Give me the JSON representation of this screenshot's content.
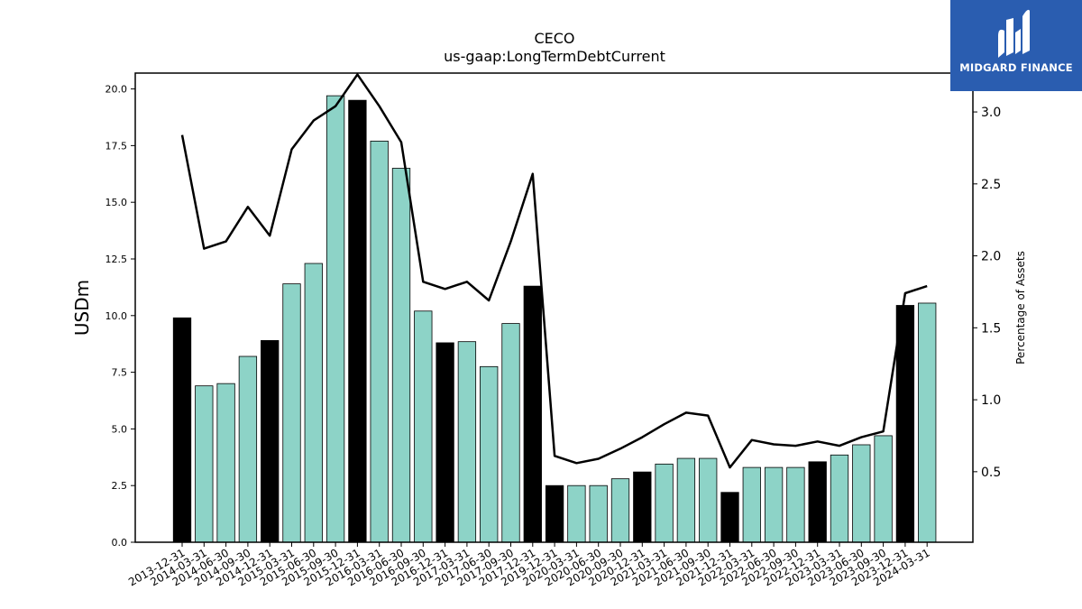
{
  "chart_data": {
    "type": "bar",
    "title": "CECO",
    "subtitle": "us-gaap:LongTermDebtCurrent",
    "ylabel": "USDm",
    "y2label": "Percentage of Assets",
    "ylim": [
      0,
      20.7
    ],
    "y2lim": [
      0.01,
      3.27
    ],
    "yticks": [
      "0.0",
      "2.5",
      "5.0",
      "7.5",
      "10.0",
      "12.5",
      "15.0",
      "17.5",
      "20.0"
    ],
    "y2ticks": [
      "0.5",
      "1.0",
      "1.5",
      "2.0",
      "2.5",
      "3.0"
    ],
    "categories": [
      "2013-12-31",
      "2014-03-31",
      "2014-06-30",
      "2014-09-30",
      "2014-12-31",
      "2015-03-31",
      "2015-06-30",
      "2015-09-30",
      "2015-12-31",
      "2016-03-31",
      "2016-06-30",
      "2016-09-30",
      "2016-12-31",
      "2017-03-31",
      "2017-06-30",
      "2017-09-30",
      "2017-12-31",
      "2019-12-31",
      "2020-03-31",
      "2020-06-30",
      "2020-09-30",
      "2020-12-31",
      "2021-03-31",
      "2021-06-30",
      "2021-09-30",
      "2021-12-31",
      "2022-03-31",
      "2022-06-30",
      "2022-09-30",
      "2022-12-31",
      "2023-03-31",
      "2023-06-30",
      "2023-09-30",
      "2023-12-31",
      "2024-03-31"
    ],
    "series": [
      {
        "values": [
          9.9,
          6.9,
          7.0,
          8.2,
          8.9,
          11.4,
          12.3,
          19.7,
          19.5,
          17.7,
          16.5,
          10.2,
          8.8,
          8.85,
          7.75,
          9.65,
          11.3,
          2.5,
          2.5,
          2.5,
          2.8,
          3.1,
          3.45,
          3.7,
          3.7,
          2.2,
          3.3,
          3.3,
          3.3,
          3.55,
          3.85,
          4.3,
          4.7,
          10.45,
          10.55
        ],
        "highlight": [
          true,
          false,
          false,
          false,
          true,
          false,
          false,
          false,
          true,
          false,
          false,
          false,
          true,
          false,
          false,
          false,
          true,
          true,
          false,
          false,
          false,
          true,
          false,
          false,
          false,
          true,
          false,
          false,
          false,
          true,
          false,
          false,
          false,
          true,
          false
        ]
      },
      {
        "axis": "right",
        "values": [
          2.84,
          2.05,
          2.1,
          2.34,
          2.14,
          2.74,
          2.94,
          3.04,
          3.26,
          3.04,
          2.79,
          1.82,
          1.77,
          1.82,
          1.69,
          2.1,
          2.57,
          0.61,
          0.56,
          0.59,
          0.66,
          0.74,
          0.83,
          0.91,
          0.89,
          0.53,
          0.72,
          0.69,
          0.68,
          0.71,
          0.68,
          0.74,
          0.78,
          1.74,
          1.79
        ]
      }
    ],
    "colors": {
      "bar": "#8dd3c7",
      "highlight": "#000000",
      "line": "#000000"
    }
  },
  "logo": {
    "text": "MIDGARD FINANCE",
    "bg": "#2a5db0"
  }
}
